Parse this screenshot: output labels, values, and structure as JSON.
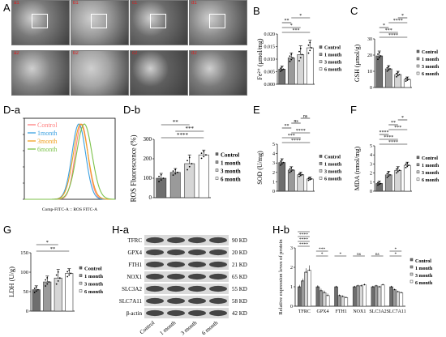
{
  "panel_labels": {
    "A": "A",
    "B": "B",
    "C": "C",
    "Da": "D-a",
    "Db": "D-b",
    "E": "E",
    "F": "F",
    "G": "G",
    "Ha": "H-a",
    "Hb": "H-b"
  },
  "legend_items": [
    "Control",
    "1 month",
    "3 month",
    "6 month"
  ],
  "colors": {
    "control": "#6e6e6e",
    "m1": "#9a9a9a",
    "m3": "#d6d6d6",
    "m6": "#ffffff",
    "flow_control": "#ff7f7f",
    "flow_1m": "#3aa0e0",
    "flow_3m": "#f0a020",
    "flow_6m": "#7cc24a"
  },
  "micrographs": [
    {
      "tag": "a1",
      "tone": "#7a7a7a"
    },
    {
      "tag": "b1",
      "tone": "#9a9a9a"
    },
    {
      "tag": "c1",
      "tone": "#6c6c6c"
    },
    {
      "tag": "d1",
      "tone": "#8a8a8a"
    },
    {
      "tag": "a2",
      "tone": "#848484"
    },
    {
      "tag": "b2",
      "tone": "#a3a3a3"
    },
    {
      "tag": "c2",
      "tone": "#5f5f5f"
    },
    {
      "tag": "d2",
      "tone": "#7a7a7a"
    }
  ],
  "flow": {
    "xlabel": "Comp-FITC-A :: ROS FITC-A",
    "legend": [
      "Control",
      "1month",
      "3month",
      "6month"
    ]
  },
  "blot": {
    "proteins": [
      "TFRC",
      "GPX4",
      "FTH1",
      "NOX1",
      "SLC3A2",
      "SLC7A11",
      "β-actin"
    ],
    "sizes": [
      "90 KD",
      "20 KD",
      "21 KD",
      "65 KD",
      "55 KD",
      "58 KD",
      "42 KD"
    ],
    "lanes": [
      "Control",
      "1 month",
      "3 month",
      "6 month"
    ]
  },
  "chart_data": [
    {
      "id": "B",
      "type": "bar",
      "ylabel": "Fe²⁺ (μmol/mg)",
      "ylim": [
        0,
        0.02
      ],
      "yticks": [
        "0.000",
        "0.005",
        "0.010",
        "0.015",
        "0.020"
      ],
      "categories": [
        "Control",
        "1 month",
        "3 month",
        "6 month"
      ],
      "values": [
        0.006,
        0.0105,
        0.0118,
        0.0145
      ],
      "errors": [
        0.0012,
        0.002,
        0.0035,
        0.003
      ],
      "sig": [
        "***",
        "*",
        "**",
        "*"
      ]
    },
    {
      "id": "C",
      "type": "bar",
      "ylabel": "GSH (μmol/g)",
      "ylim": [
        0,
        30
      ],
      "yticks": [
        "0",
        "10",
        "20",
        "30"
      ],
      "categories": [
        "Control",
        "1 month",
        "3 month",
        "6 month"
      ],
      "values": [
        19.5,
        11.5,
        8,
        5
      ],
      "errors": [
        3,
        2,
        2,
        1.5
      ],
      "sig": [
        "****",
        "***",
        "*",
        "****",
        "*"
      ]
    },
    {
      "id": "Db",
      "type": "bar",
      "ylabel": "ROS Fluorescence (%)",
      "ylim": [
        0,
        300
      ],
      "yticks": [
        "0",
        "100",
        "200",
        "300"
      ],
      "categories": [
        "Control",
        "1 month",
        "3 month",
        "6 month"
      ],
      "values": [
        100,
        130,
        175,
        220
      ],
      "errors": [
        25,
        20,
        45,
        25
      ],
      "sig": [
        "****",
        "***",
        "**"
      ]
    },
    {
      "id": "E",
      "type": "bar",
      "ylabel": "SOD (U/mg)",
      "ylim": [
        0,
        5
      ],
      "yticks": [
        "0",
        "1",
        "2",
        "3",
        "4",
        "5"
      ],
      "categories": [
        "Control",
        "1 month",
        "3 month",
        "6 month"
      ],
      "values": [
        3.05,
        2.25,
        1.75,
        1.3
      ],
      "errors": [
        0.4,
        0.35,
        0.25,
        0.2
      ],
      "sig": [
        "****",
        "***",
        "****",
        "**",
        "ns",
        "ns"
      ]
    },
    {
      "id": "F",
      "type": "bar",
      "ylabel": "MDA (nmol/mg)",
      "ylim": [
        0,
        5
      ],
      "yticks": [
        "0",
        "1",
        "2",
        "3",
        "4",
        "5"
      ],
      "categories": [
        "Control",
        "1 month",
        "3 month",
        "6 month"
      ],
      "values": [
        0.85,
        1.8,
        2.3,
        2.85
      ],
      "errors": [
        0.25,
        0.4,
        0.4,
        0.35
      ],
      "sig": [
        "****",
        "****",
        "****",
        "***",
        "**",
        "*"
      ]
    },
    {
      "id": "G",
      "type": "bar",
      "ylabel": "LDH (U/g)",
      "ylim": [
        0,
        150
      ],
      "yticks": [
        "0",
        "50",
        "100",
        "150"
      ],
      "categories": [
        "Control",
        "1 month",
        "3 month",
        "6 month"
      ],
      "values": [
        55,
        75,
        85,
        97
      ],
      "errors": [
        10,
        15,
        22,
        12
      ],
      "sig": [
        "**",
        "*"
      ]
    },
    {
      "id": "Hb",
      "type": "bar",
      "ylabel": "Relative expression leves of protein",
      "ylim": [
        0,
        3
      ],
      "yticks": [
        "0",
        "1",
        "2",
        "3"
      ],
      "categories": [
        "TFRC",
        "GPX4",
        "FTH1",
        "NOX1",
        "SLC3A2",
        "SLC7A11"
      ],
      "series": [
        {
          "name": "Control",
          "values": [
            1.0,
            1.0,
            1.0,
            1.0,
            1.0,
            1.0
          ],
          "errors": [
            0.1,
            0.08,
            0.05,
            0.05,
            0.05,
            0.05
          ]
        },
        {
          "name": "1 month",
          "values": [
            1.3,
            0.8,
            0.55,
            1.05,
            1.05,
            0.85
          ],
          "errors": [
            0.12,
            0.1,
            0.06,
            0.06,
            0.05,
            0.05
          ]
        },
        {
          "name": "3 month",
          "values": [
            1.75,
            0.7,
            0.5,
            1.05,
            1.0,
            0.75
          ],
          "errors": [
            0.2,
            0.1,
            0.06,
            0.06,
            0.05,
            0.05
          ]
        },
        {
          "name": "6 month",
          "values": [
            1.85,
            0.55,
            0.45,
            1.1,
            1.1,
            0.7
          ],
          "errors": [
            0.25,
            0.1,
            0.05,
            0.06,
            0.06,
            0.05
          ]
        }
      ],
      "sig": [
        "****",
        "****",
        "****",
        "****",
        "****",
        "***",
        "*",
        "*",
        "ns",
        "ns",
        "*",
        "*"
      ]
    }
  ]
}
